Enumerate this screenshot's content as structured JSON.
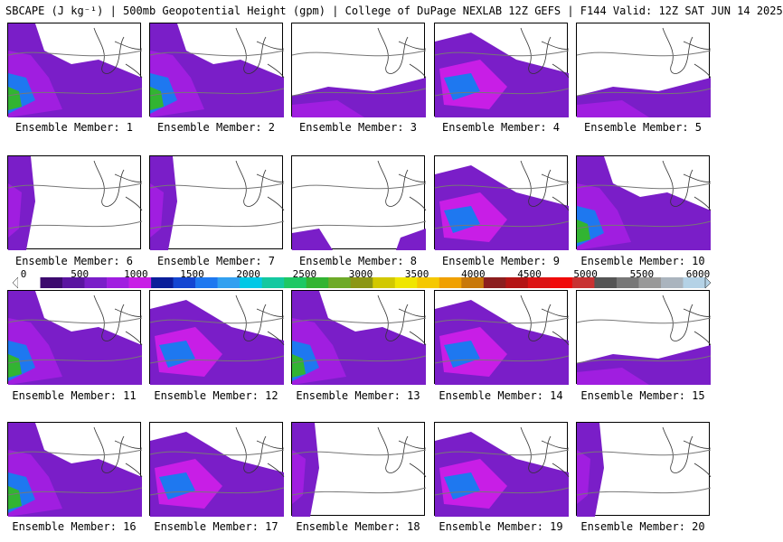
{
  "title": "SBCAPE (J kg⁻¹) | 500mb Geopotential Height (gpm) | College of DuPage NEXLAB 12Z GEFS | F144 Valid: 12Z SAT JUN 14 2025",
  "colorbar": {
    "labels": [
      "0",
      "500",
      "1000",
      "1500",
      "2000",
      "2500",
      "3000",
      "3500",
      "4000",
      "4500",
      "5000",
      "5500",
      "6000"
    ],
    "colors": [
      "#ffffff",
      "#3c0a6e",
      "#5a14a0",
      "#7a1ec8",
      "#a01ee0",
      "#c81ee6",
      "#0a1e9a",
      "#1446d2",
      "#1e78f0",
      "#32a0f0",
      "#00c8e6",
      "#14c8a0",
      "#1ec864",
      "#32b432",
      "#6eaa28",
      "#8c9614",
      "#d2c800",
      "#f0e600",
      "#f5c800",
      "#f0a000",
      "#c8780a",
      "#8c1e1e",
      "#b41414",
      "#dc1414",
      "#f00a0a",
      "#c83232",
      "#555555",
      "#777777",
      "#999999",
      "#aab4be",
      "#b4d2e6"
    ]
  },
  "panels": [
    {
      "caption": "Ensemble Member: 1",
      "pattern": "sw-heavy"
    },
    {
      "caption": "Ensemble Member: 2",
      "pattern": "sw-heavy"
    },
    {
      "caption": "Ensemble Member: 3",
      "pattern": "south-strip"
    },
    {
      "caption": "Ensemble Member: 4",
      "pattern": "broad"
    },
    {
      "caption": "Ensemble Member: 5",
      "pattern": "south-strip"
    },
    {
      "caption": "Ensemble Member: 6",
      "pattern": "west-edge"
    },
    {
      "caption": "Ensemble Member: 7",
      "pattern": "west-edge"
    },
    {
      "caption": "Ensemble Member: 8",
      "pattern": "sparse"
    },
    {
      "caption": "Ensemble Member: 9",
      "pattern": "broad"
    },
    {
      "caption": "Ensemble Member: 10",
      "pattern": "sw-heavy"
    },
    {
      "caption": "Ensemble Member: 11",
      "pattern": "sw-heavy"
    },
    {
      "caption": "Ensemble Member: 12",
      "pattern": "broad"
    },
    {
      "caption": "Ensemble Member: 13",
      "pattern": "sw-heavy"
    },
    {
      "caption": "Ensemble Member: 14",
      "pattern": "broad"
    },
    {
      "caption": "Ensemble Member: 15",
      "pattern": "south-strip"
    },
    {
      "caption": "Ensemble Member: 16",
      "pattern": "sw-heavy"
    },
    {
      "caption": "Ensemble Member: 17",
      "pattern": "broad"
    },
    {
      "caption": "Ensemble Member: 18",
      "pattern": "west-edge"
    },
    {
      "caption": "Ensemble Member: 19",
      "pattern": "broad"
    },
    {
      "caption": "Ensemble Member: 20",
      "pattern": "west-edge"
    }
  ]
}
